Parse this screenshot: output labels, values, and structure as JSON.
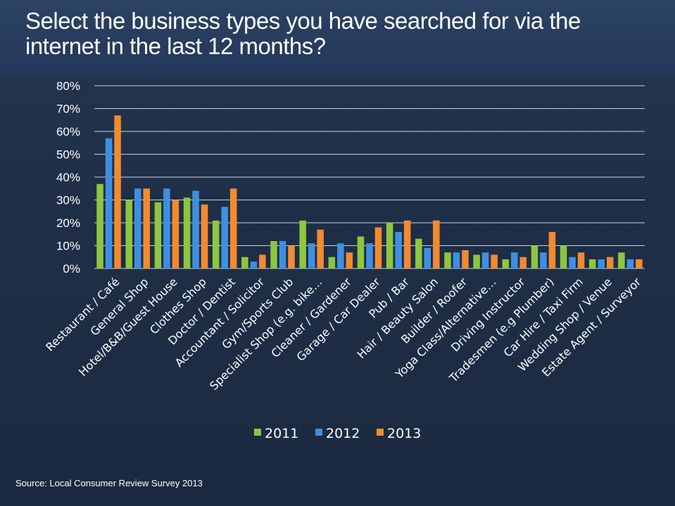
{
  "title": "Select the business types you have searched for via the internet in the last 12 months?",
  "source": "Source: Local Consumer Review Survey 2013",
  "colors": {
    "2011": "#8dc63f",
    "2012": "#3f8fe0",
    "2013": "#f28a30"
  },
  "chart_data": {
    "type": "bar",
    "ylim": [
      0,
      80
    ],
    "yticks": [
      "0%",
      "10%",
      "20%",
      "30%",
      "40%",
      "50%",
      "60%",
      "70%",
      "80%"
    ],
    "grid": true,
    "legend_position": "bottom",
    "categories": [
      "Restaurant / Café",
      "General Shop",
      "Hotel/B&B/Guest House",
      "Clothes Shop",
      "Doctor / Dentist",
      "Accountant / Solicitor",
      "Gym/Sports Club",
      "Specialist Shop (e.g. bike…",
      "Cleaner / Gardener",
      "Garage / Car Dealer",
      "Pub / Bar",
      "Hair / Beauty Salon",
      "Builder / Roofer",
      "Yoga Class/Alternative…",
      "Driving Instructor",
      "Tradesmen (e.g Plumber)",
      "Car Hire / Taxi Firm",
      "Wedding Shop / Venue",
      "Estate Agent / Surveyor"
    ],
    "series": [
      {
        "name": "2011",
        "values": [
          37,
          30,
          29,
          31,
          21,
          5,
          12,
          21,
          5,
          14,
          20,
          13,
          7,
          6,
          4,
          10,
          10,
          4,
          7
        ]
      },
      {
        "name": "2012",
        "values": [
          57,
          35,
          35,
          34,
          27,
          3,
          12,
          11,
          11,
          11,
          16,
          9,
          7,
          7,
          7,
          7,
          5,
          4,
          4
        ]
      },
      {
        "name": "2013",
        "values": [
          67,
          35,
          30,
          28,
          35,
          6,
          10,
          17,
          7,
          18,
          21,
          21,
          8,
          6,
          5,
          16,
          7,
          5,
          4
        ]
      }
    ]
  }
}
